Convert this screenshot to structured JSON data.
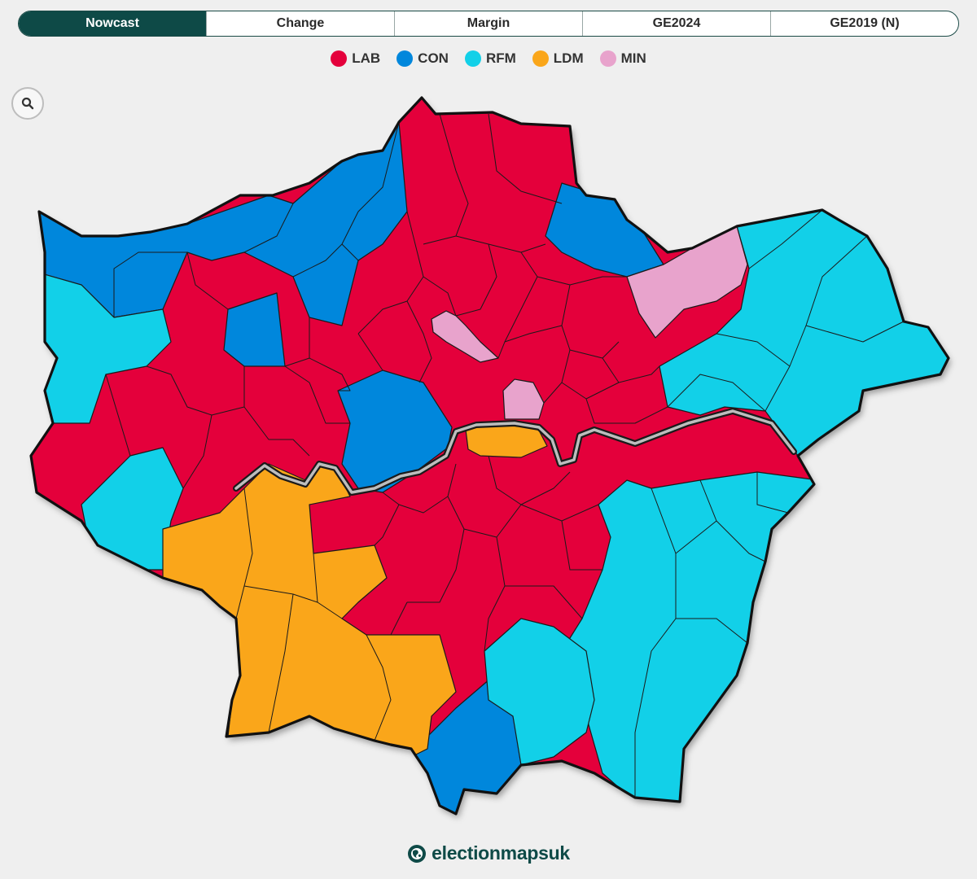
{
  "tabs": [
    {
      "label": "Nowcast",
      "active": true
    },
    {
      "label": "Change",
      "active": false
    },
    {
      "label": "Margin",
      "active": false
    },
    {
      "label": "GE2024",
      "active": false
    },
    {
      "label": "GE2019 (N)",
      "active": false
    }
  ],
  "legend": [
    {
      "code": "LAB",
      "color": "#e4003b"
    },
    {
      "code": "CON",
      "color": "#0087dc"
    },
    {
      "code": "RFM",
      "color": "#12d0e8"
    },
    {
      "code": "LDM",
      "color": "#faa61a"
    },
    {
      "code": "MIN",
      "color": "#e8a3cc"
    }
  ],
  "zoom": {
    "icon": "search-icon"
  },
  "map": {
    "region": "Greater London",
    "constituency_winners": {
      "LAB": "central, north and south-east inner areas",
      "CON": "north-west and north outer areas, central west, far south",
      "RFM": "east outer areas, far west, south-east",
      "LDM": "south-west outer areas and one central riverside seat",
      "MIN": "three seats in north-central and north-east"
    }
  },
  "brand": {
    "name": "electionmapsuk",
    "icon": "globe-logo-icon"
  }
}
